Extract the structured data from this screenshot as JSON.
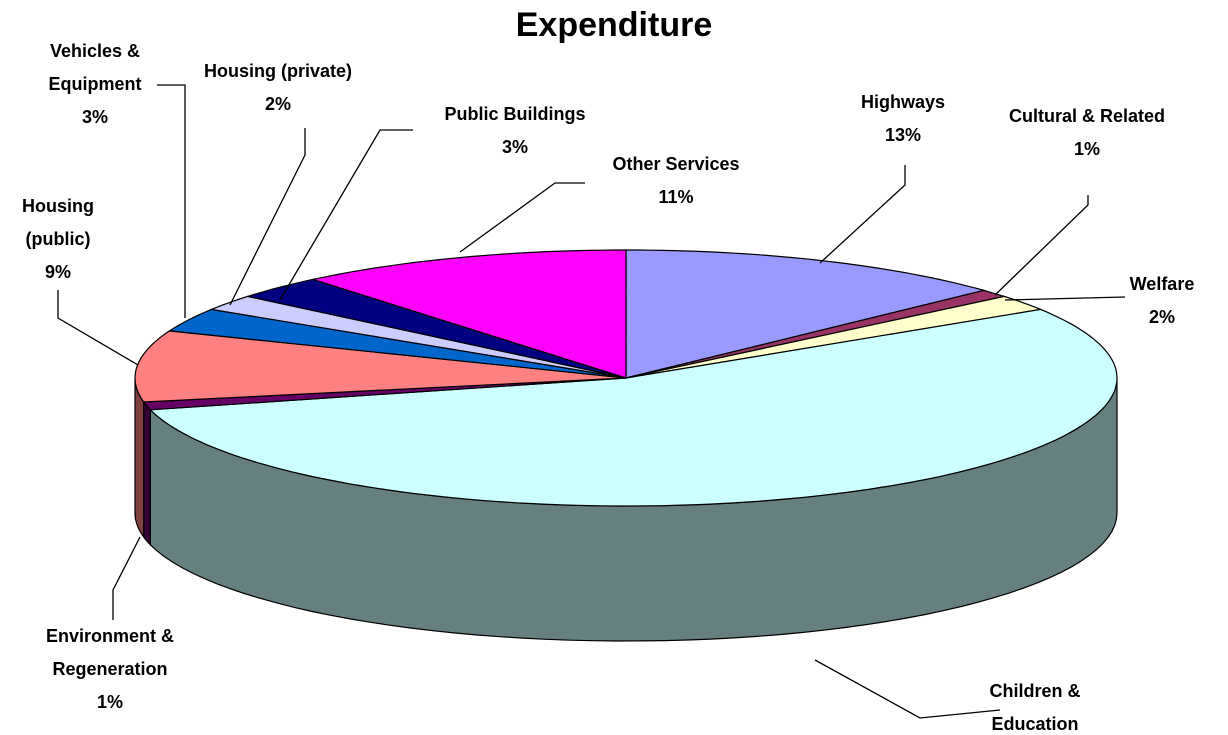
{
  "chart_data": {
    "type": "pie3d",
    "title": "Expenditure",
    "categories": [
      "Highways",
      "Cultural & Related",
      "Welfare",
      "Children & Education",
      "Environment & Regeneration",
      "Housing (public)",
      "Vehicles & Equipment",
      "Housing (private)",
      "Public Buildings",
      "Other Services"
    ],
    "values": [
      13,
      1,
      2,
      55,
      1,
      9,
      3,
      2,
      3,
      11
    ],
    "value_labels": [
      "13%",
      "1%",
      "2%",
      null,
      "1%",
      "9%",
      "3%",
      "2%",
      "3%",
      "11%"
    ],
    "colors": [
      "#9999ff",
      "#993366",
      "#ffffcc",
      "#ccffff",
      "#660066",
      "#ff8080",
      "#0066cc",
      "#ccccff",
      "#000080",
      "#ff00ff"
    ]
  }
}
